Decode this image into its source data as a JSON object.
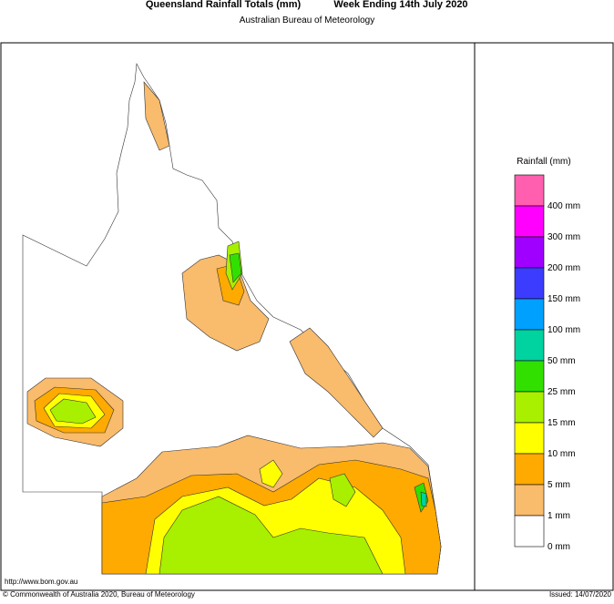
{
  "header": {
    "title": "Queensland Rainfall Totals (mm)",
    "period": "Week Ending 14th July 2020",
    "subtitle": "Australian Bureau of Meteorology"
  },
  "legend": {
    "title": "Rainfall (mm)",
    "items": [
      {
        "label": null,
        "color": "#ff5fae"
      },
      {
        "label": "400 mm",
        "color": "#ff00ff"
      },
      {
        "label": "300 mm",
        "color": "#a000ff"
      },
      {
        "label": "200 mm",
        "color": "#3c3cff"
      },
      {
        "label": "150 mm",
        "color": "#00a0ff"
      },
      {
        "label": "100 mm",
        "color": "#00d2a0"
      },
      {
        "label": "50 mm",
        "color": "#32e000"
      },
      {
        "label": "25 mm",
        "color": "#a8f000"
      },
      {
        "label": "15 mm",
        "color": "#ffff00"
      },
      {
        "label": "10 mm",
        "color": "#ffaa00"
      },
      {
        "label": "5 mm",
        "color": "#f9bb6c"
      },
      {
        "label": "1 mm",
        "color": "#ffffff"
      }
    ],
    "bottom_label": "0 mm"
  },
  "footer": {
    "url": "http://www.bom.gov.au",
    "copyright": "© Commonwealth of Australia 2020, Bureau of Meteorology",
    "issued": "Issued: 14/07/2020"
  }
}
